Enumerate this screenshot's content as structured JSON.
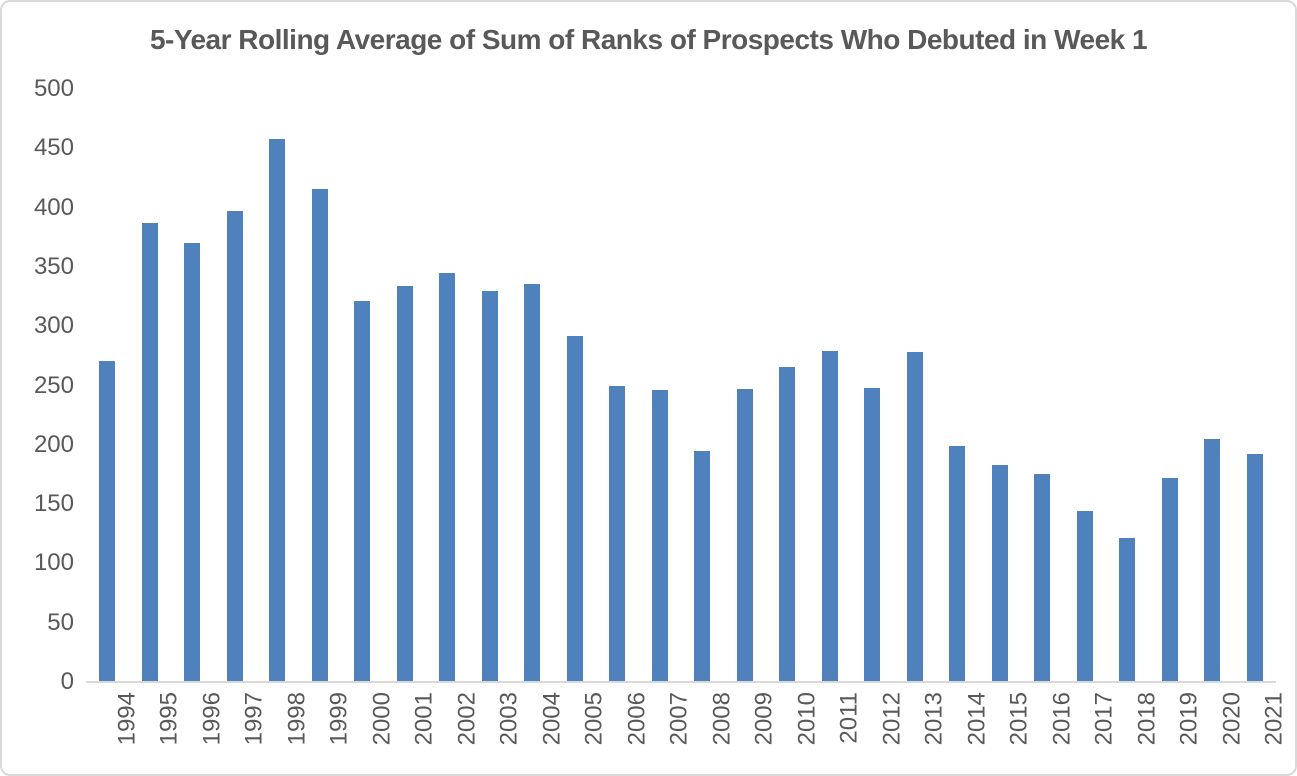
{
  "chart_data": {
    "type": "bar",
    "title": "5-Year Rolling Average of Sum of Ranks of Prospects Who Debuted in Week 1",
    "categories": [
      "1994",
      "1995",
      "1996",
      "1997",
      "1998",
      "1999",
      "2000",
      "2001",
      "2002",
      "2003",
      "2004",
      "2005",
      "2006",
      "2007",
      "2008",
      "2009",
      "2010",
      "2011",
      "2012",
      "2013",
      "2014",
      "2015",
      "2016",
      "2017",
      "2018",
      "2019",
      "2020",
      "2021"
    ],
    "values": [
      271,
      387,
      370,
      397,
      458,
      416,
      321,
      334,
      345,
      330,
      336,
      292,
      250,
      246,
      195,
      247,
      266,
      279,
      248,
      278,
      199,
      183,
      175,
      144,
      121,
      172,
      205,
      192
    ],
    "xlabel": "",
    "ylabel": "",
    "ylim": [
      0,
      500
    ],
    "ytick_step": 50,
    "yticks": [
      "500",
      "450",
      "400",
      "350",
      "300",
      "250",
      "200",
      "150",
      "100",
      "50",
      "0"
    ],
    "grid": false,
    "legend": null,
    "colors": {
      "bar": "#4f81bd",
      "label_text": "#595959",
      "title_text": "#595959",
      "axis_line": "#d9d9d9",
      "frame_border": "#d9d9d9",
      "background": "#ffffff"
    }
  }
}
